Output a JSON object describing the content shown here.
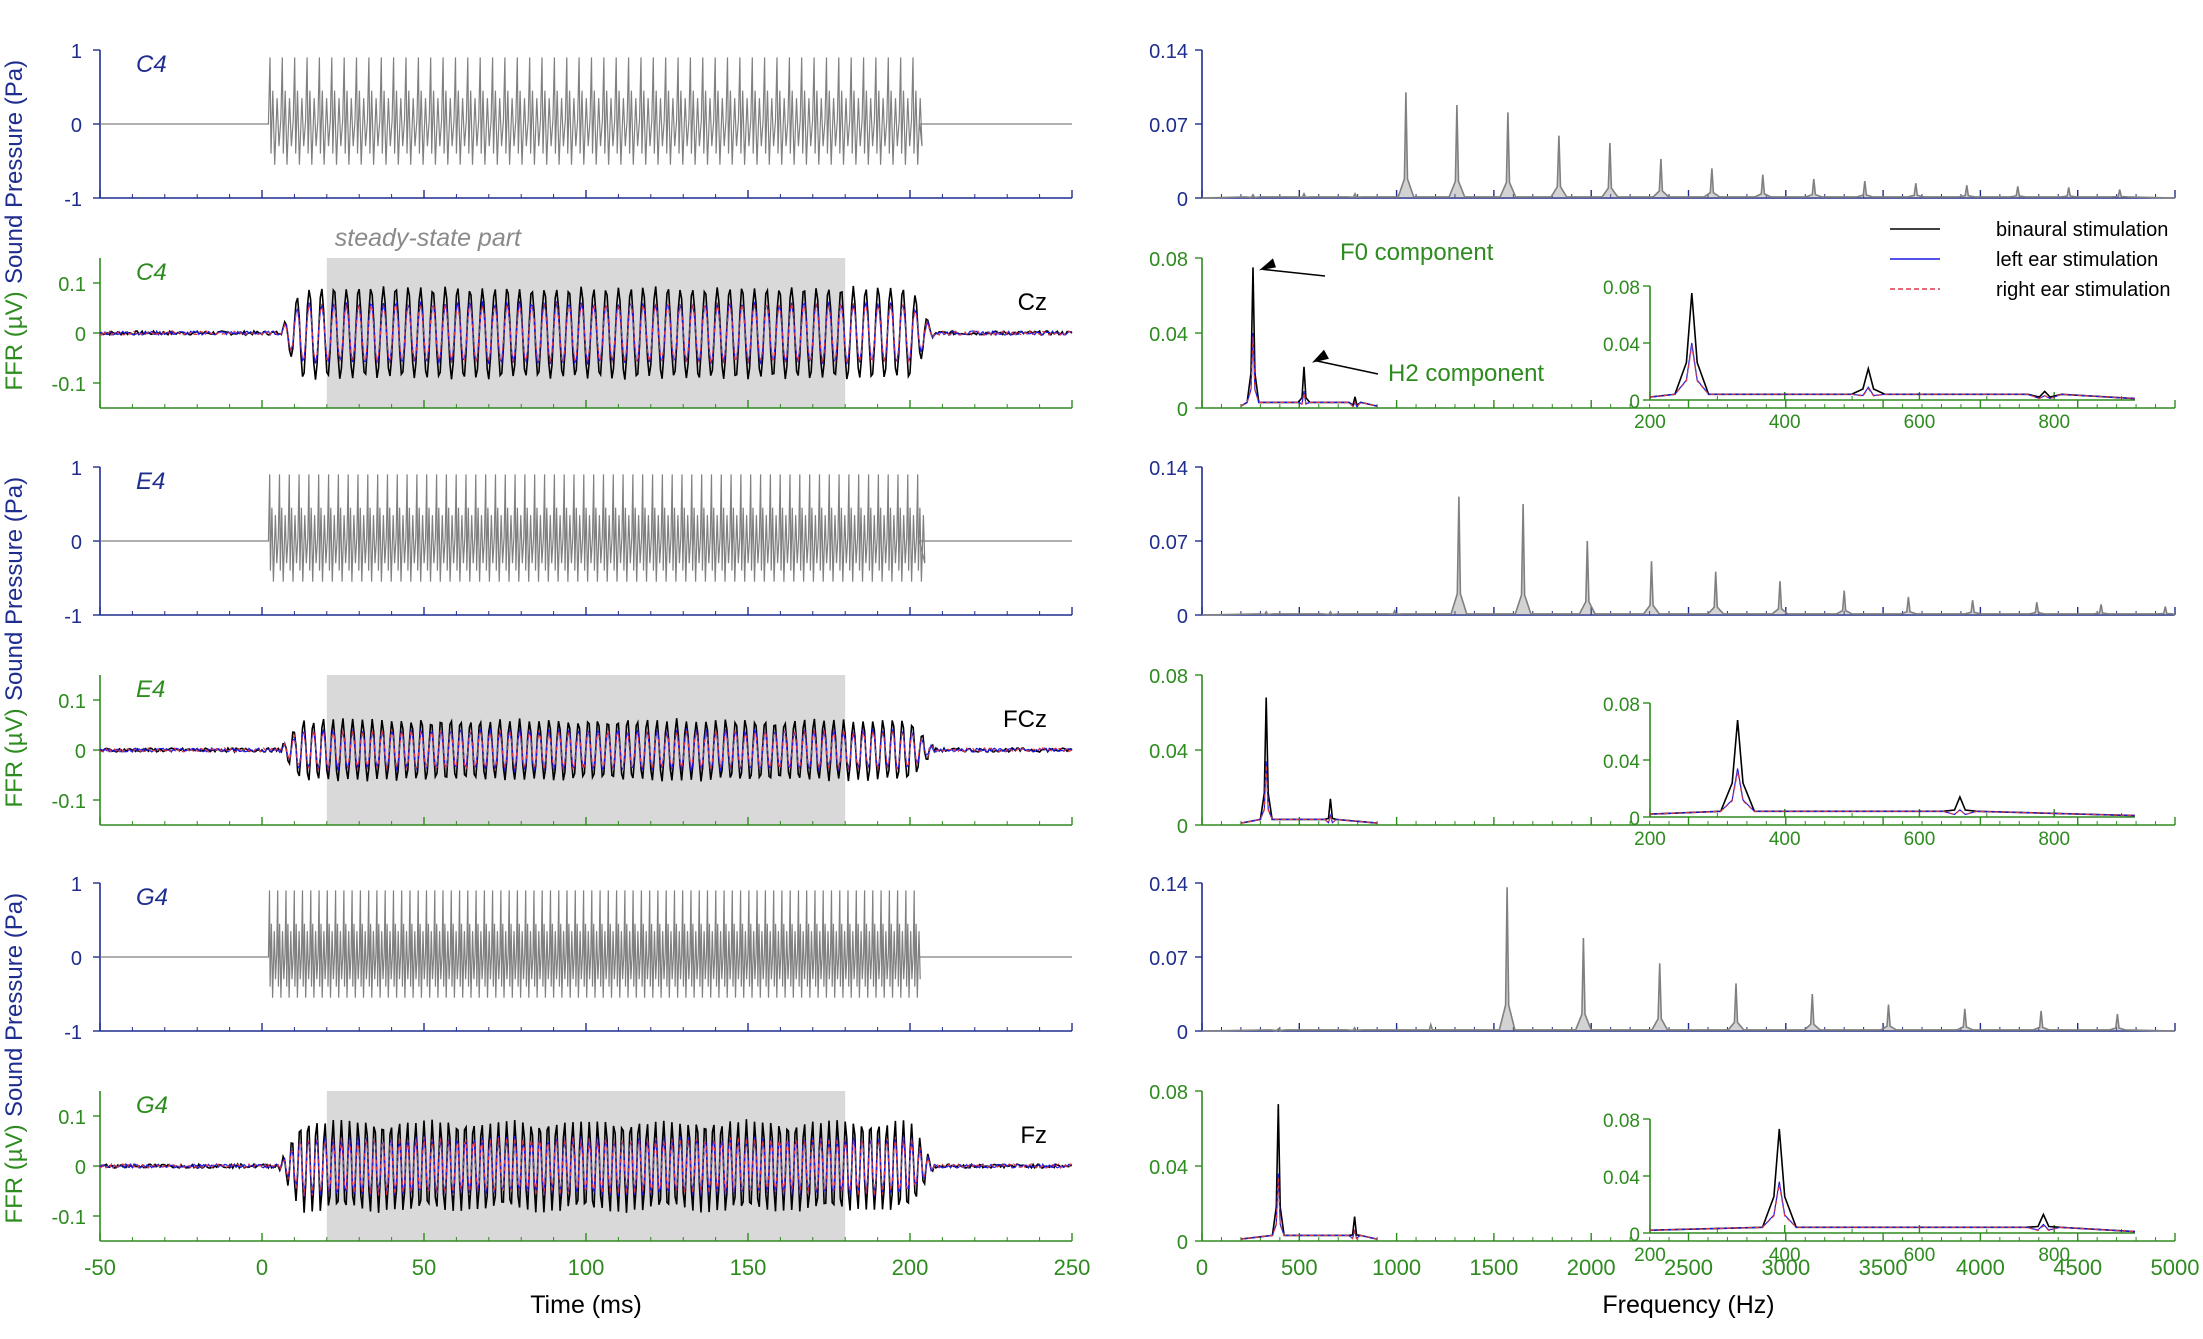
{
  "chart_data": {
    "type": "line",
    "title": "",
    "colors": {
      "sound_axis": "#1f2d8f",
      "ffr_axis": "#2e8b1f",
      "stimulus_trace": "#808080",
      "shade": "#d9d9d9",
      "binaural": "#000000",
      "left_ear": "#1a1ae6",
      "right_ear": "#d63a4a"
    },
    "time_axis": {
      "xlabel": "Time (ms)",
      "xlim": [
        -50,
        250
      ],
      "ticks": [
        -50,
        0,
        50,
        100,
        150,
        200,
        250
      ],
      "tick_labels": [
        "-50",
        "0",
        "50",
        "100",
        "150",
        "200",
        "250"
      ]
    },
    "freq_axis": {
      "xlabel": "Frequency (Hz)",
      "xlim": [
        0,
        5000
      ],
      "ticks": [
        0,
        500,
        1000,
        1500,
        2000,
        2500,
        3000,
        3500,
        4000,
        4500,
        5000
      ],
      "tick_labels": [
        "0",
        "500",
        "1000",
        "1500",
        "2000",
        "2500",
        "3000",
        "3500",
        "4000",
        "4500",
        "5000"
      ]
    },
    "sound_ylabel": "Sound Pressure (Pa)",
    "ffr_ylabel": "FFR (µV)",
    "sound_yticks": [
      "1",
      "0",
      "-1"
    ],
    "sound_ylim": [
      -1,
      1
    ],
    "ffr_yticks": [
      "0.1",
      "0",
      "-0.1"
    ],
    "ffr_ylim": [
      -0.15,
      0.15
    ],
    "sound_spec_ylim": [
      0,
      0.14
    ],
    "sound_spec_yticks": [
      "0",
      "0.07",
      "0.14"
    ],
    "ffr_spec_ylim": [
      0,
      0.08
    ],
    "ffr_spec_yticks": [
      "0",
      "0.04",
      "0.08"
    ],
    "inset_xlim": [
      200,
      920
    ],
    "inset_xticks": [
      "200",
      "400",
      "600",
      "800"
    ],
    "inset_ylim": [
      0,
      0.08
    ],
    "inset_yticks": [
      "0",
      "0.04",
      "0.08"
    ],
    "stimulus_onset_ms": 2,
    "stimulus_offset_ms": 203,
    "steady_state": {
      "label": "steady-state part",
      "range_ms": [
        20,
        180
      ]
    },
    "legend": {
      "position": "top-right",
      "entries": [
        {
          "label": "binaural stimulation",
          "style": "solid",
          "color": "#000000"
        },
        {
          "label": "left ear stimulation",
          "style": "solid",
          "color": "#1a1ae6"
        },
        {
          "label": "right ear stimulation",
          "style": "dashed",
          "color": "#d63a4a"
        }
      ]
    },
    "annotations": [
      {
        "label": "F0 component",
        "points_to_hz": 262,
        "value": 0.075
      },
      {
        "label": "H2 component",
        "points_to_hz": 524,
        "value": 0.022
      }
    ],
    "rows": [
      {
        "note": "C4",
        "f0_hz": 262,
        "electrode": "Cz",
        "stimulus_spectrum": [
          0.003,
          0.004,
          0.004,
          0.1,
          0.088,
          0.081,
          0.059,
          0.052,
          0.037,
          0.028,
          0.022,
          0.018,
          0.016,
          0.014,
          0.012,
          0.011,
          0.01,
          0.008,
          0.008
        ],
        "ffr_spectrum": {
          "binaural": [
            0.075,
            0.022,
            0.006
          ],
          "left": [
            0.04,
            0.009,
            0.003
          ],
          "right": [
            0.038,
            0.008,
            0.003
          ]
        },
        "ffr_amp": {
          "binaural": 0.09,
          "left": 0.06,
          "right": 0.058
        }
      },
      {
        "note": "E4",
        "f0_hz": 330,
        "electrode": "FCz",
        "stimulus_spectrum": [
          0.003,
          0.003,
          0.004,
          0.112,
          0.105,
          0.07,
          0.051,
          0.041,
          0.032,
          0.023,
          0.017,
          0.014,
          0.012,
          0.01,
          0.008
        ],
        "ffr_spectrum": {
          "binaural": [
            0.068,
            0.014
          ],
          "left": [
            0.034,
            0.005
          ],
          "right": [
            0.032,
            0.005
          ]
        },
        "ffr_amp": {
          "binaural": 0.06,
          "left": 0.04,
          "right": 0.038
        }
      },
      {
        "note": "G4",
        "f0_hz": 392,
        "electrode": "Fz",
        "stimulus_spectrum": [
          0.002,
          0.003,
          0.006,
          0.136,
          0.088,
          0.064,
          0.045,
          0.035,
          0.025,
          0.021,
          0.019,
          0.016
        ],
        "ffr_spectrum": {
          "binaural": [
            0.073,
            0.013
          ],
          "left": [
            0.036,
            0.006
          ],
          "right": [
            0.034,
            0.005
          ]
        },
        "ffr_amp": {
          "binaural": 0.09,
          "left": 0.058,
          "right": 0.056
        }
      }
    ]
  }
}
